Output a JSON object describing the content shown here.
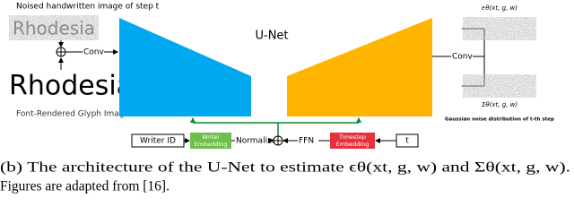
{
  "figure": {
    "noised_label": "Noised handwritten image of step t",
    "noised_word": "Rhodesia",
    "conv_left": "Conv",
    "glyph_word": "Rhodesia",
    "glyph_label": "Font-Rendered Glyph Image",
    "unet": "U-Net",
    "conv_right": "Conv",
    "eps_label": "ϵθ(xt, g, w)",
    "sigma_label": "Σθ(xt, g, w)",
    "noise_label": "Gaussian noise distribution of t-th step",
    "writer_id": "Writer ID",
    "writer_embedding": [
      "Writer",
      "Embedding"
    ],
    "normalize": "Normalize",
    "ffn": "FFN",
    "timestep_embedding": [
      "Timestep",
      "Embedding"
    ],
    "t": "t"
  },
  "caption": [
    "(b) The architecture of the U-Net to estimate ϵθ(xt, g, w) and Σθ(xt, g, w).",
    "Figures are adapted from [16]."
  ]
}
